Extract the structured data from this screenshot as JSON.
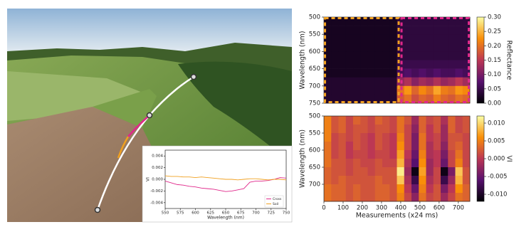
{
  "chart_data": [
    {
      "type": "line",
      "xlabel": "Wavelength (nm)",
      "ylabel": "VI",
      "x": [
        550,
        560,
        570,
        580,
        590,
        600,
        610,
        620,
        630,
        640,
        650,
        660,
        670,
        680,
        690,
        700,
        710,
        720,
        730,
        740,
        750
      ],
      "series": [
        {
          "name": "Cross",
          "color": "#e0288a",
          "values": [
            -0.0003,
            -0.0006,
            -0.0009,
            -0.001,
            -0.0012,
            -0.0013,
            -0.0015,
            -0.0016,
            -0.0017,
            -0.0019,
            -0.0021,
            -0.002,
            -0.0018,
            -0.0016,
            -0.0005,
            -0.0003,
            -0.0003,
            -0.0002,
            0,
            0.0003,
            0.0002
          ]
        },
        {
          "name": "Soil",
          "color": "#f0a020",
          "values": [
            0.0006,
            0.0005,
            0.0005,
            0.0004,
            0.0004,
            0.0003,
            0.0004,
            0.0003,
            0.0002,
            0.0001,
            0,
            0,
            -0.0001,
            0,
            0.0001,
            0.0001,
            0,
            -0.0001,
            0,
            0,
            -0.0001
          ]
        }
      ],
      "xlim": [
        550,
        750
      ],
      "xticks": [
        550,
        575,
        600,
        625,
        650,
        675,
        700,
        725,
        750
      ],
      "ylim": [
        -0.005,
        0.005
      ],
      "yticks": [
        0.004,
        0.002,
        {
          "value": 0,
          "label": "0.000"
        },
        -0.002,
        -0.004
      ],
      "legend": "lower right"
    },
    {
      "type": "heatmap",
      "ylabel": "Wavelength (nm)",
      "colorbar_label": "Reflectance",
      "colormap": "inferno",
      "x": [
        19,
        57,
        95,
        133,
        171,
        209,
        247,
        285,
        323,
        361,
        399,
        437,
        475,
        513,
        551,
        589,
        627,
        665,
        703,
        741
      ],
      "y": [
        512.5,
        537.5,
        562.5,
        587.5,
        612.5,
        637.5,
        662.5,
        687.5,
        712.5,
        737.5
      ],
      "xlim": [
        0,
        760
      ],
      "ylim": [
        500,
        750
      ],
      "yticks": [
        500,
        550,
        600,
        650,
        700,
        750
      ],
      "clim": [
        0,
        0.3
      ],
      "cticks": [
        {
          "value": 0,
          "label": "0.00"
        },
        0.05,
        {
          "value": 0.1,
          "label": "0.10"
        },
        0.15,
        {
          "value": 0.2,
          "label": "0.20"
        },
        0.25,
        {
          "value": 0.3,
          "label": "0.30"
        }
      ],
      "values": [
        [
          0.02,
          0.02,
          0.02,
          0.02,
          0.02,
          0.02,
          0.02,
          0.02,
          0.02,
          0.02,
          0.04,
          0.04,
          0.04,
          0.04,
          0.04,
          0.04,
          0.04,
          0.04,
          0.04,
          0.04
        ],
        [
          0.02,
          0.02,
          0.02,
          0.02,
          0.02,
          0.02,
          0.02,
          0.02,
          0.02,
          0.02,
          0.04,
          0.04,
          0.04,
          0.04,
          0.04,
          0.04,
          0.04,
          0.04,
          0.04,
          0.04
        ],
        [
          0.02,
          0.02,
          0.02,
          0.02,
          0.02,
          0.02,
          0.02,
          0.02,
          0.02,
          0.02,
          0.04,
          0.04,
          0.04,
          0.04,
          0.04,
          0.04,
          0.04,
          0.04,
          0.04,
          0.04
        ],
        [
          0.02,
          0.02,
          0.02,
          0.02,
          0.02,
          0.02,
          0.02,
          0.02,
          0.02,
          0.02,
          0.04,
          0.04,
          0.04,
          0.04,
          0.04,
          0.04,
          0.04,
          0.04,
          0.04,
          0.04
        ],
        [
          0.02,
          0.02,
          0.02,
          0.02,
          0.02,
          0.02,
          0.02,
          0.02,
          0.02,
          0.02,
          0.04,
          0.04,
          0.04,
          0.04,
          0.04,
          0.04,
          0.04,
          0.04,
          0.04,
          0.04
        ],
        [
          0.02,
          0.02,
          0.02,
          0.02,
          0.02,
          0.02,
          0.02,
          0.02,
          0.02,
          0.02,
          0.05,
          0.05,
          0.05,
          0.05,
          0.05,
          0.05,
          0.05,
          0.05,
          0.05,
          0.05
        ],
        [
          0.02,
          0.02,
          0.02,
          0.02,
          0.02,
          0.02,
          0.02,
          0.02,
          0.02,
          0.02,
          0.06,
          0.07,
          0.06,
          0.07,
          0.06,
          0.07,
          0.06,
          0.06,
          0.07,
          0.06
        ],
        [
          0.03,
          0.03,
          0.03,
          0.03,
          0.03,
          0.03,
          0.03,
          0.03,
          0.03,
          0.03,
          0.12,
          0.14,
          0.11,
          0.13,
          0.12,
          0.14,
          0.12,
          0.13,
          0.15,
          0.13
        ],
        [
          0.03,
          0.03,
          0.03,
          0.03,
          0.03,
          0.03,
          0.03,
          0.03,
          0.03,
          0.03,
          0.2,
          0.23,
          0.19,
          0.22,
          0.2,
          0.24,
          0.21,
          0.2,
          0.23,
          0.22
        ],
        [
          0.03,
          0.03,
          0.03,
          0.03,
          0.03,
          0.03,
          0.03,
          0.03,
          0.03,
          0.03,
          0.18,
          0.2,
          0.17,
          0.19,
          0.18,
          0.21,
          0.19,
          0.18,
          0.2,
          0.19
        ]
      ]
    },
    {
      "type": "heatmap",
      "ylabel": "Wavelength (nm)",
      "xlabel": "Measurements (x24 ms)",
      "colorbar_label": "VI",
      "colormap": "inferno",
      "x": [
        19,
        57,
        95,
        133,
        171,
        209,
        247,
        285,
        323,
        361,
        399,
        437,
        475,
        513,
        551,
        589,
        627,
        665,
        703,
        741
      ],
      "y": [
        512.5,
        537.5,
        562.5,
        587.5,
        612.5,
        637.5,
        662.5,
        687.5,
        712.5,
        737.5
      ],
      "xlim": [
        0,
        760
      ],
      "xticks": [
        0,
        100,
        200,
        300,
        400,
        500,
        600,
        700
      ],
      "ylim": [
        500,
        750
      ],
      "yticks": [
        500,
        550,
        600,
        650,
        700
      ],
      "clim": [
        -0.012,
        0.012
      ],
      "cticks": [
        {
          "value": 0.01,
          "label": "0.010"
        },
        0.005,
        {
          "value": 0,
          "label": "0.000"
        },
        -0.005,
        {
          "value": -0.01,
          "label": "-0.010"
        }
      ],
      "values": [
        [
          0.005,
          0.002,
          0.003,
          0.001,
          0.003,
          0.002,
          0.001,
          0.003,
          0.002,
          0.001,
          0.004,
          0.002,
          -0.002,
          0.003,
          0.001,
          0.002,
          -0.001,
          0.003,
          0.001,
          0.002
        ],
        [
          0.005,
          0.002,
          0.003,
          0.001,
          0.002,
          0.002,
          0.001,
          0.002,
          0.002,
          0.001,
          0.004,
          0.001,
          -0.003,
          0.003,
          0.0,
          0.002,
          -0.002,
          0.003,
          0.001,
          0.002
        ],
        [
          0.005,
          0.001,
          0.002,
          0.001,
          0.002,
          0.001,
          0.0,
          0.002,
          0.001,
          0.0,
          0.005,
          0.001,
          -0.004,
          0.004,
          0.0,
          0.001,
          -0.002,
          0.002,
          0.002,
          0.001
        ],
        [
          0.004,
          0.001,
          0.002,
          0.0,
          0.002,
          0.001,
          0.0,
          0.002,
          0.001,
          0.0,
          0.006,
          0.001,
          -0.004,
          0.004,
          -0.001,
          0.001,
          -0.003,
          0.002,
          0.003,
          0.001
        ],
        [
          0.004,
          0.001,
          0.002,
          0.0,
          0.001,
          0.001,
          0.0,
          0.001,
          0.001,
          0.0,
          0.007,
          0.0,
          -0.005,
          0.005,
          -0.001,
          0.0,
          -0.004,
          0.001,
          0.004,
          0.001
        ],
        [
          0.004,
          0.002,
          0.002,
          0.001,
          0.002,
          0.001,
          0.001,
          0.002,
          0.001,
          0.001,
          0.008,
          -0.001,
          -0.006,
          0.006,
          -0.002,
          0.0,
          -0.005,
          0.001,
          0.005,
          0.001
        ],
        [
          0.003,
          0.002,
          0.002,
          0.001,
          0.002,
          0.002,
          0.001,
          0.002,
          0.002,
          0.002,
          0.011,
          -0.002,
          -0.011,
          0.007,
          -0.002,
          0.001,
          -0.011,
          -0.004,
          0.009,
          0.002
        ],
        [
          0.003,
          0.002,
          0.003,
          0.002,
          0.002,
          0.002,
          0.002,
          0.003,
          0.002,
          0.002,
          0.009,
          -0.001,
          -0.008,
          0.006,
          -0.001,
          0.001,
          -0.008,
          -0.002,
          0.008,
          0.002
        ],
        [
          0.004,
          0.003,
          0.003,
          0.002,
          0.003,
          0.002,
          0.002,
          0.003,
          0.003,
          0.002,
          0.006,
          0.0,
          -0.005,
          0.005,
          0.0,
          0.002,
          -0.004,
          0.0,
          0.006,
          0.003
        ],
        [
          0.004,
          0.003,
          0.003,
          0.002,
          0.003,
          0.002,
          0.002,
          0.003,
          0.003,
          0.002,
          0.005,
          0.001,
          -0.003,
          0.004,
          0.001,
          0.002,
          -0.002,
          0.001,
          0.004,
          0.003
        ]
      ]
    }
  ]
}
